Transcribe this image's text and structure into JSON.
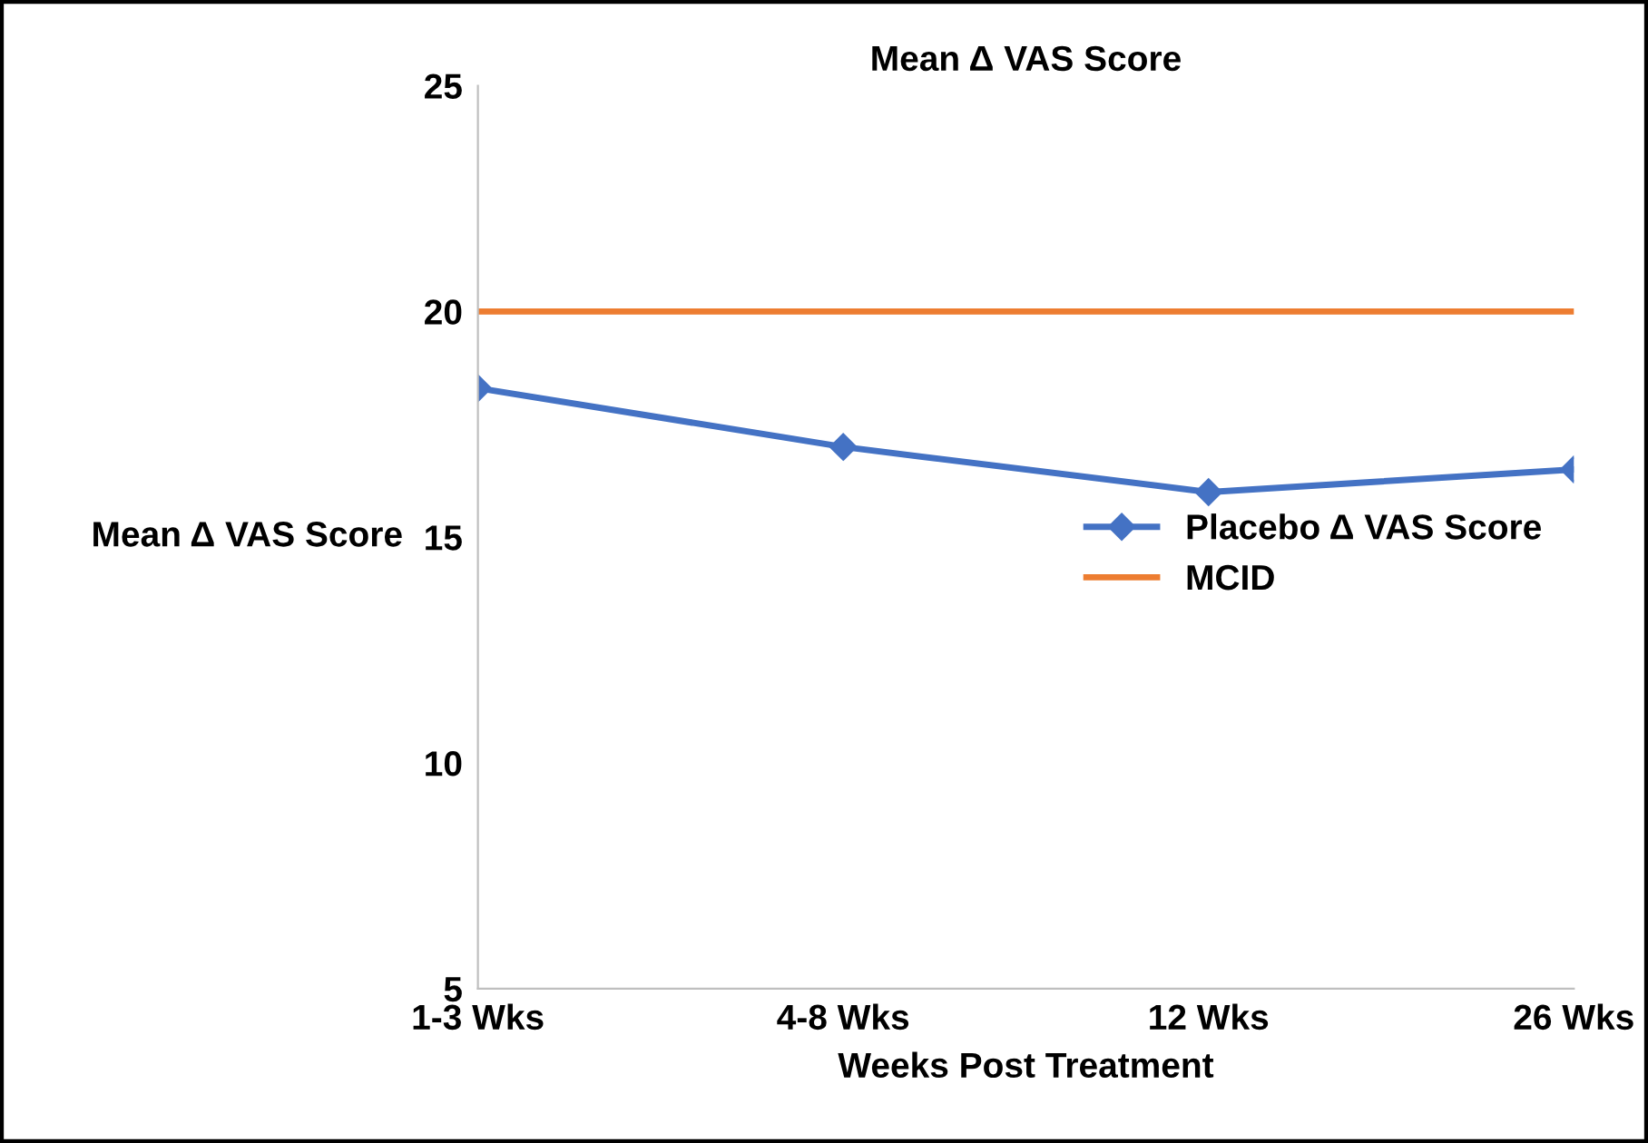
{
  "chart_data": {
    "type": "line",
    "title": "Mean Δ VAS Score",
    "xlabel": "Weeks Post Treatment",
    "ylabel": "Mean Δ VAS Score",
    "categories": [
      "1-3 Wks",
      "4-8 Wks",
      "12 Wks",
      "26 Wks"
    ],
    "series": [
      {
        "name": "Placebo Δ VAS Score",
        "color": "#4472c4",
        "values": [
          18.3,
          17.0,
          16.0,
          16.5
        ],
        "marker": "diamond"
      },
      {
        "name": "MCID",
        "color": "#ed7d31",
        "values": [
          20,
          20,
          20,
          20
        ],
        "marker": "none"
      }
    ],
    "ylim": [
      5,
      25
    ],
    "yticks": [
      5,
      10,
      15,
      20,
      25
    ],
    "grid": false,
    "legend": "right"
  }
}
